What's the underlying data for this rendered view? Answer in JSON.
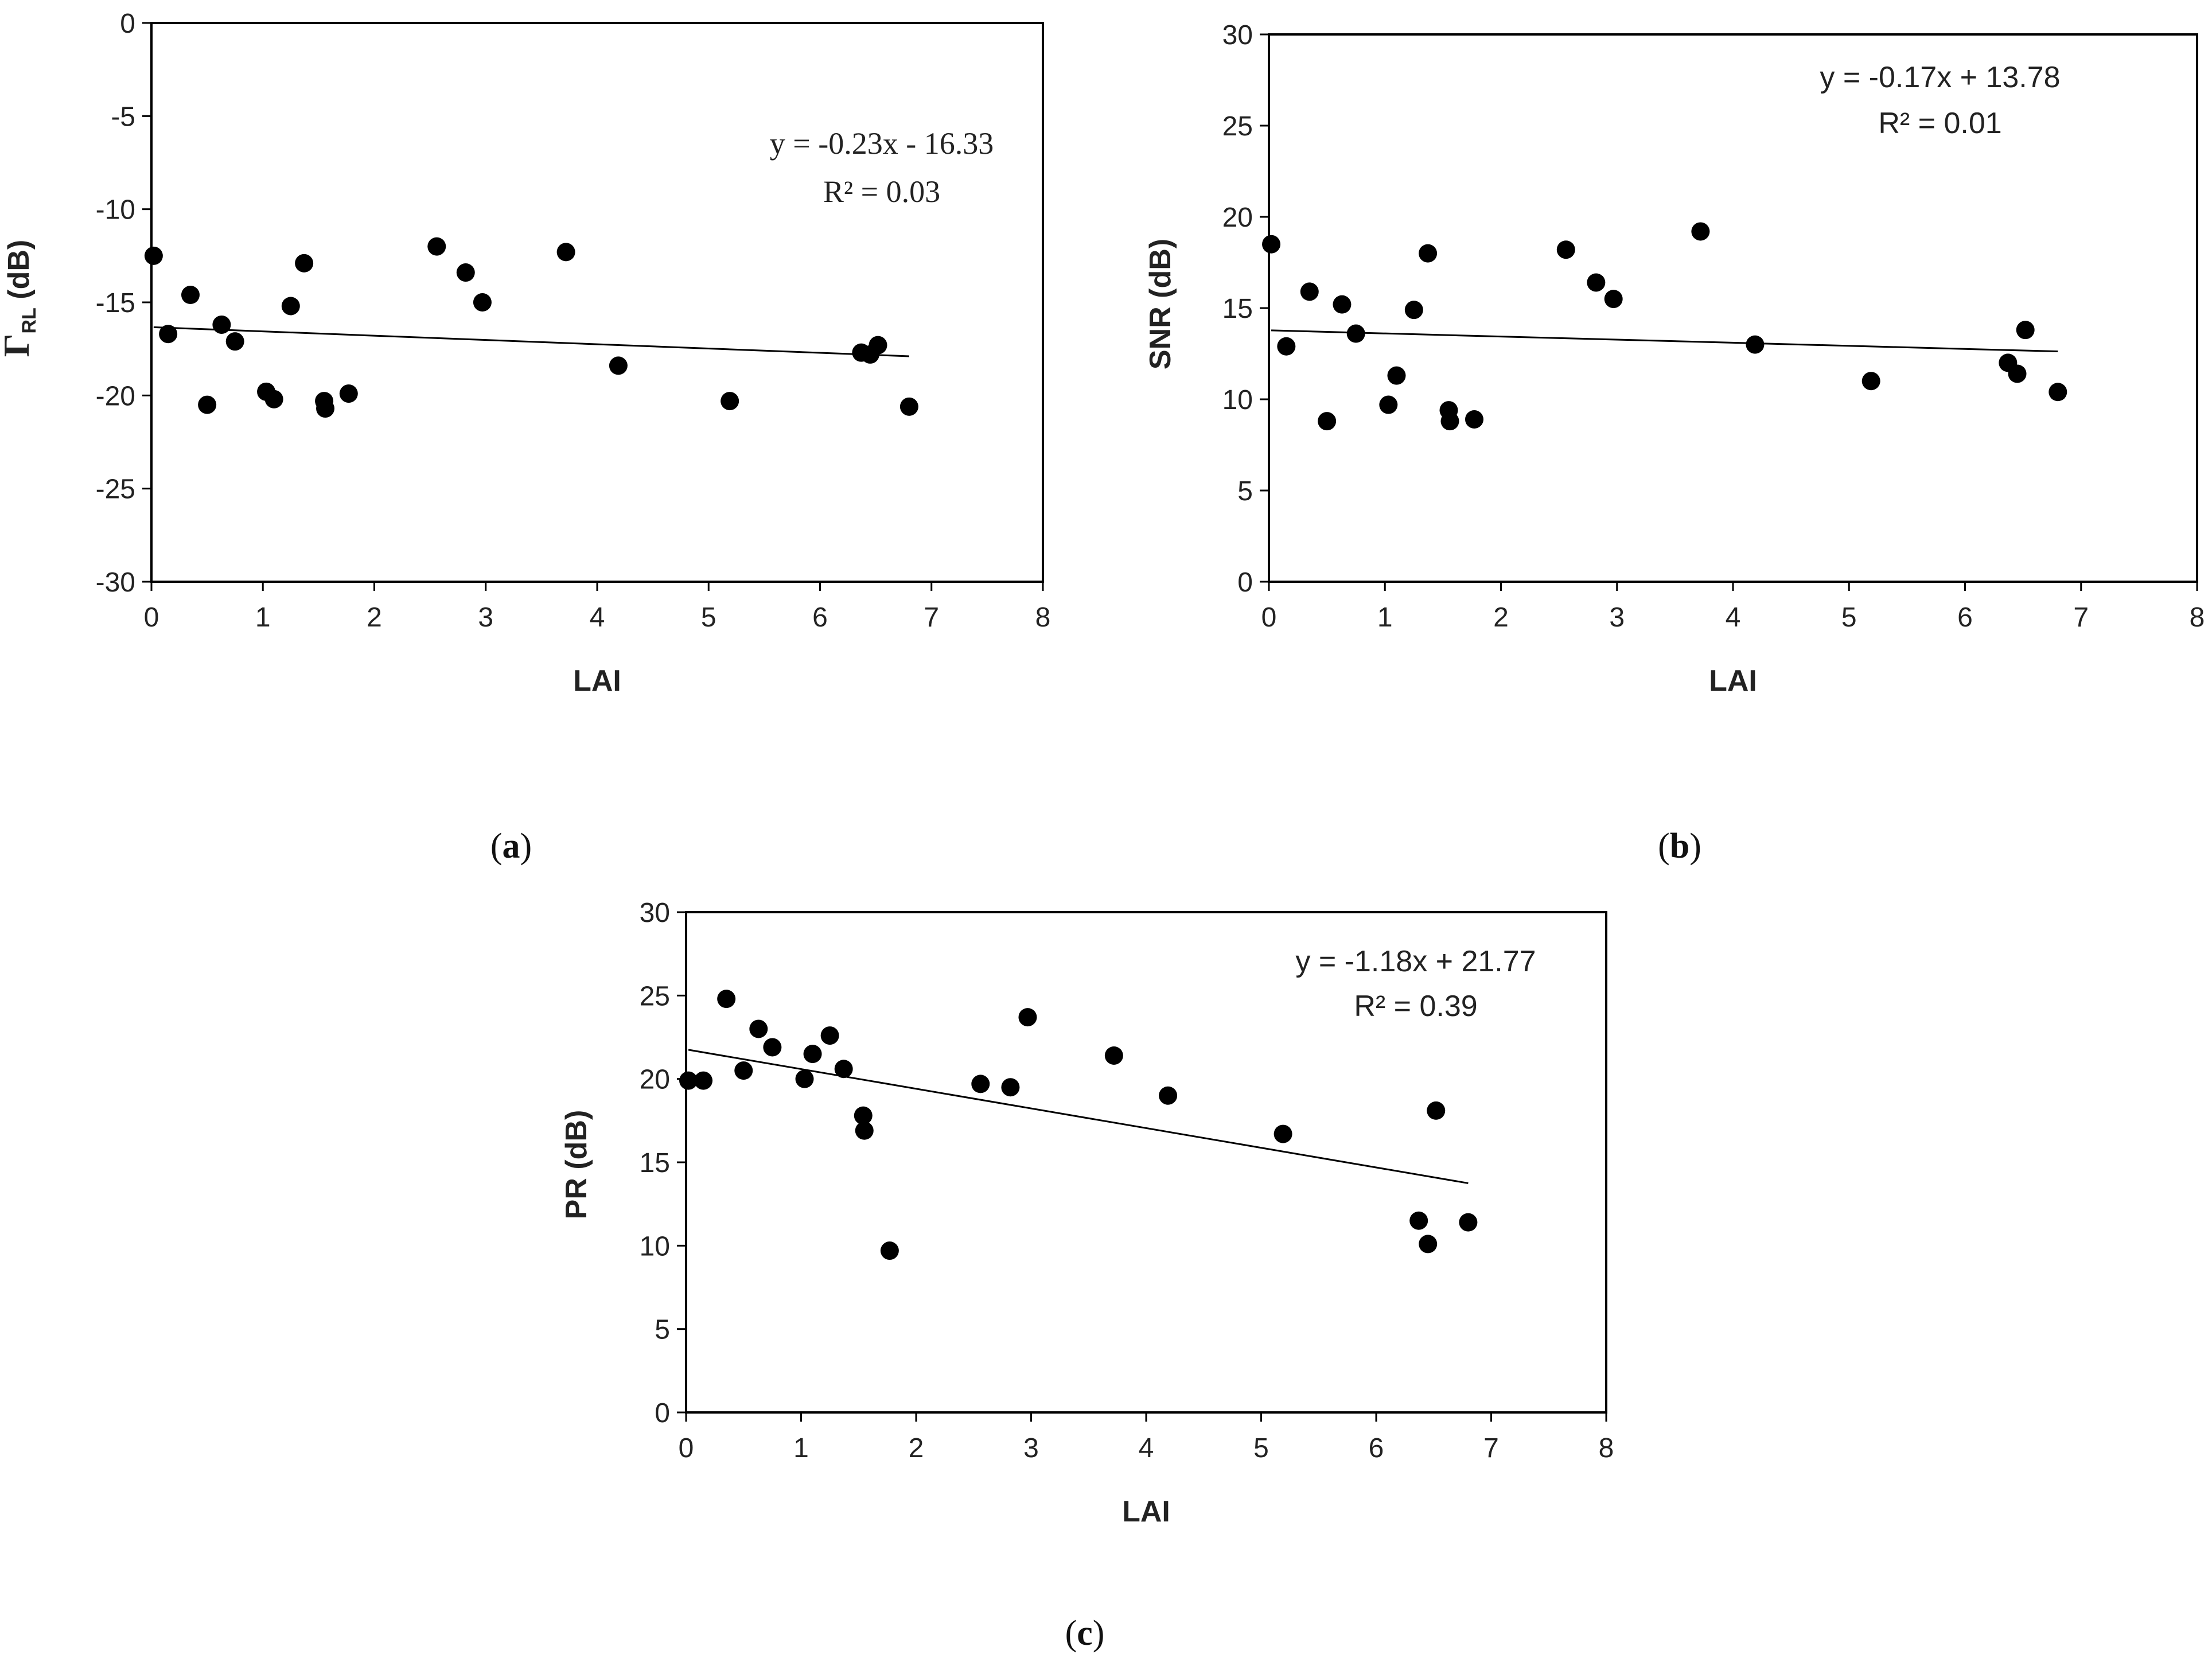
{
  "chart_data": [
    {
      "id": "a",
      "type": "scatter",
      "caption_label": "a",
      "xlabel": "LAI",
      "ylabel_symbol": "Γ",
      "ylabel_sub": "RL",
      "ylabel_rest": " (dB)",
      "xlim": [
        0,
        8
      ],
      "ylim": [
        -30,
        0
      ],
      "xticks": [
        "0",
        "1",
        "2",
        "3",
        "4",
        "5",
        "6",
        "7",
        "8"
      ],
      "yticks": [
        "-30",
        "-25",
        "-20",
        "-15",
        "-10",
        "-5",
        "0"
      ],
      "equation": "y = -0.23x - 16.33",
      "r2": "R² = 0.03",
      "trendline": {
        "slope": -0.23,
        "intercept": -16.33,
        "x_start": 0.02,
        "x_end": 6.8
      },
      "x": [
        0.02,
        0.15,
        0.35,
        0.5,
        0.63,
        0.75,
        1.03,
        1.1,
        1.25,
        1.37,
        1.55,
        1.56,
        1.77,
        2.56,
        2.82,
        2.97,
        3.72,
        4.19,
        5.19,
        6.37,
        6.45,
        6.52,
        6.8
      ],
      "y": [
        -12.5,
        -16.7,
        -14.6,
        -20.5,
        -16.2,
        -17.1,
        -19.8,
        -20.2,
        -15.2,
        -12.9,
        -20.3,
        -20.7,
        -19.9,
        -12.0,
        -13.4,
        -15.0,
        -12.3,
        -18.4,
        -20.3,
        -17.7,
        -17.8,
        -17.3,
        -20.6
      ]
    },
    {
      "id": "b",
      "type": "scatter",
      "caption_label": "b",
      "xlabel": "LAI",
      "ylabel": "SNR (dB)",
      "xlim": [
        0,
        8
      ],
      "ylim": [
        0,
        30
      ],
      "xticks": [
        "0",
        "1",
        "2",
        "3",
        "4",
        "5",
        "6",
        "7",
        "8"
      ],
      "yticks": [
        "0",
        "5",
        "10",
        "15",
        "20",
        "25",
        "30"
      ],
      "equation": "y = -0.17x + 13.78",
      "r2": "R² = 0.01",
      "trendline": {
        "slope": -0.17,
        "intercept": 13.78,
        "x_start": 0.02,
        "x_end": 6.8
      },
      "x": [
        0.02,
        0.15,
        0.35,
        0.5,
        0.63,
        0.75,
        1.03,
        1.1,
        1.25,
        1.37,
        1.55,
        1.56,
        1.77,
        2.56,
        2.82,
        2.97,
        3.72,
        4.19,
        5.19,
        6.37,
        6.45,
        6.52,
        6.8
      ],
      "y": [
        18.5,
        12.9,
        15.9,
        8.8,
        15.2,
        13.6,
        9.7,
        11.3,
        14.9,
        18.0,
        9.4,
        8.8,
        8.9,
        18.2,
        16.4,
        15.5,
        19.2,
        13.0,
        11.0,
        12.0,
        11.4,
        13.8,
        10.4
      ]
    },
    {
      "id": "c",
      "type": "scatter",
      "caption_label": "c",
      "xlabel": "LAI",
      "ylabel": "PR (dB)",
      "xlim": [
        0,
        8
      ],
      "ylim": [
        0,
        30
      ],
      "xticks": [
        "0",
        "1",
        "2",
        "3",
        "4",
        "5",
        "6",
        "7",
        "8"
      ],
      "yticks": [
        "0",
        "5",
        "10",
        "15",
        "20",
        "25",
        "30"
      ],
      "equation": "y = -1.18x + 21.77",
      "r2": "R² = 0.39",
      "trendline": {
        "slope": -1.18,
        "intercept": 21.77,
        "x_start": 0.02,
        "x_end": 6.8
      },
      "x": [
        0.02,
        0.15,
        0.35,
        0.5,
        0.63,
        0.75,
        1.03,
        1.1,
        1.25,
        1.37,
        1.54,
        1.55,
        1.77,
        2.56,
        2.82,
        2.97,
        3.72,
        4.19,
        5.19,
        6.37,
        6.45,
        6.52,
        6.8
      ],
      "y": [
        19.9,
        19.9,
        24.8,
        20.5,
        23.0,
        21.9,
        20.0,
        21.5,
        22.6,
        20.6,
        17.8,
        16.9,
        9.7,
        19.7,
        19.5,
        23.7,
        21.4,
        19.0,
        16.7,
        11.5,
        10.1,
        18.1,
        11.4
      ]
    }
  ]
}
